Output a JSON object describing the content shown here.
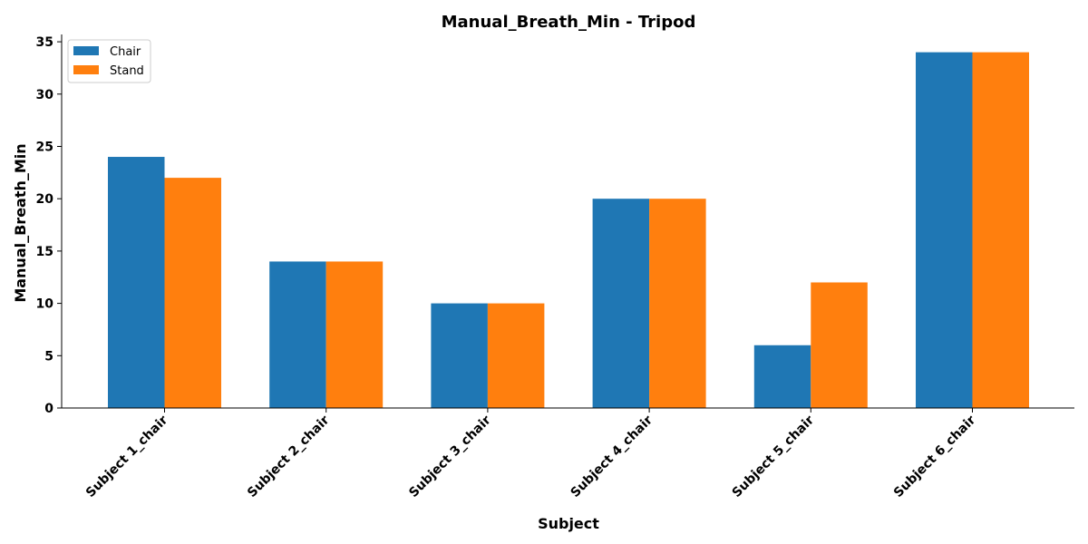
{
  "chart_data": {
    "type": "bar",
    "title": "Manual_Breath_Min - Tripod",
    "xlabel": "Subject",
    "ylabel": "Manual_Breath_Min",
    "categories": [
      "Subject 1_chair",
      "Subject 2_chair",
      "Subject 3_chair",
      "Subject 4_chair",
      "Subject 5_chair",
      "Subject 6_chair"
    ],
    "series": [
      {
        "name": "Chair",
        "values": [
          24,
          14,
          10,
          20,
          6,
          34
        ],
        "color": "#1f77b4"
      },
      {
        "name": "Stand",
        "values": [
          22,
          14,
          10,
          20,
          12,
          34
        ],
        "color": "#ff7f0e"
      }
    ],
    "ylim": [
      0,
      35.7
    ],
    "yticks": [
      0,
      5,
      10,
      15,
      20,
      25,
      30,
      35
    ],
    "grid": false,
    "legend_position": "top-left"
  }
}
